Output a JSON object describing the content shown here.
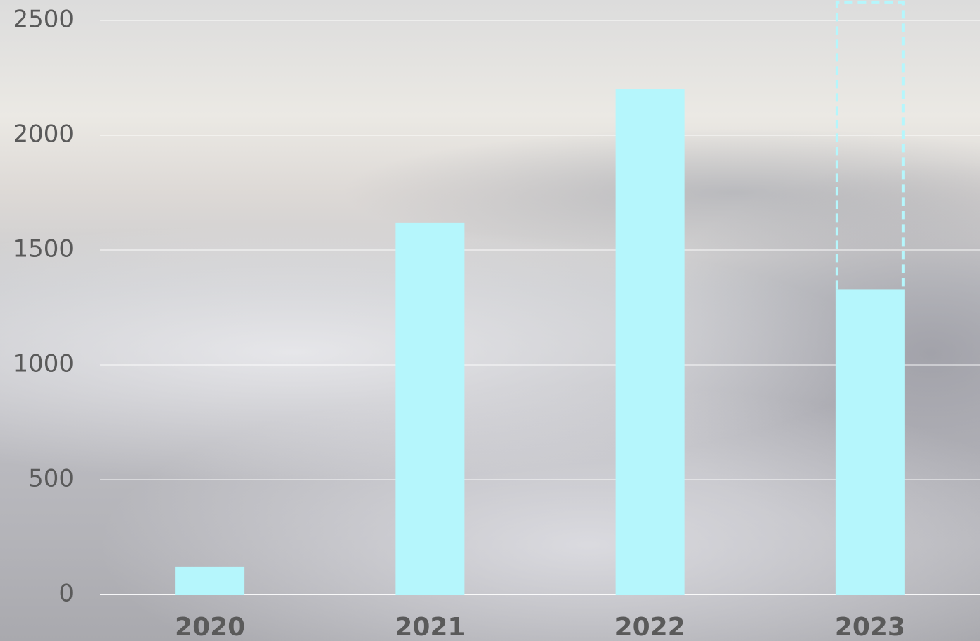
{
  "chart_data": {
    "type": "bar",
    "categories": [
      "2020",
      "2021",
      "2022",
      "2023"
    ],
    "values": [
      120,
      1620,
      2200,
      1330
    ],
    "dashed_values": [
      null,
      null,
      null,
      2580
    ],
    "color": "#b5f6fc",
    "ylim": [
      0,
      2500
    ],
    "yticks": [
      0,
      500,
      1000,
      1500,
      2000,
      2500
    ],
    "grid": true
  }
}
